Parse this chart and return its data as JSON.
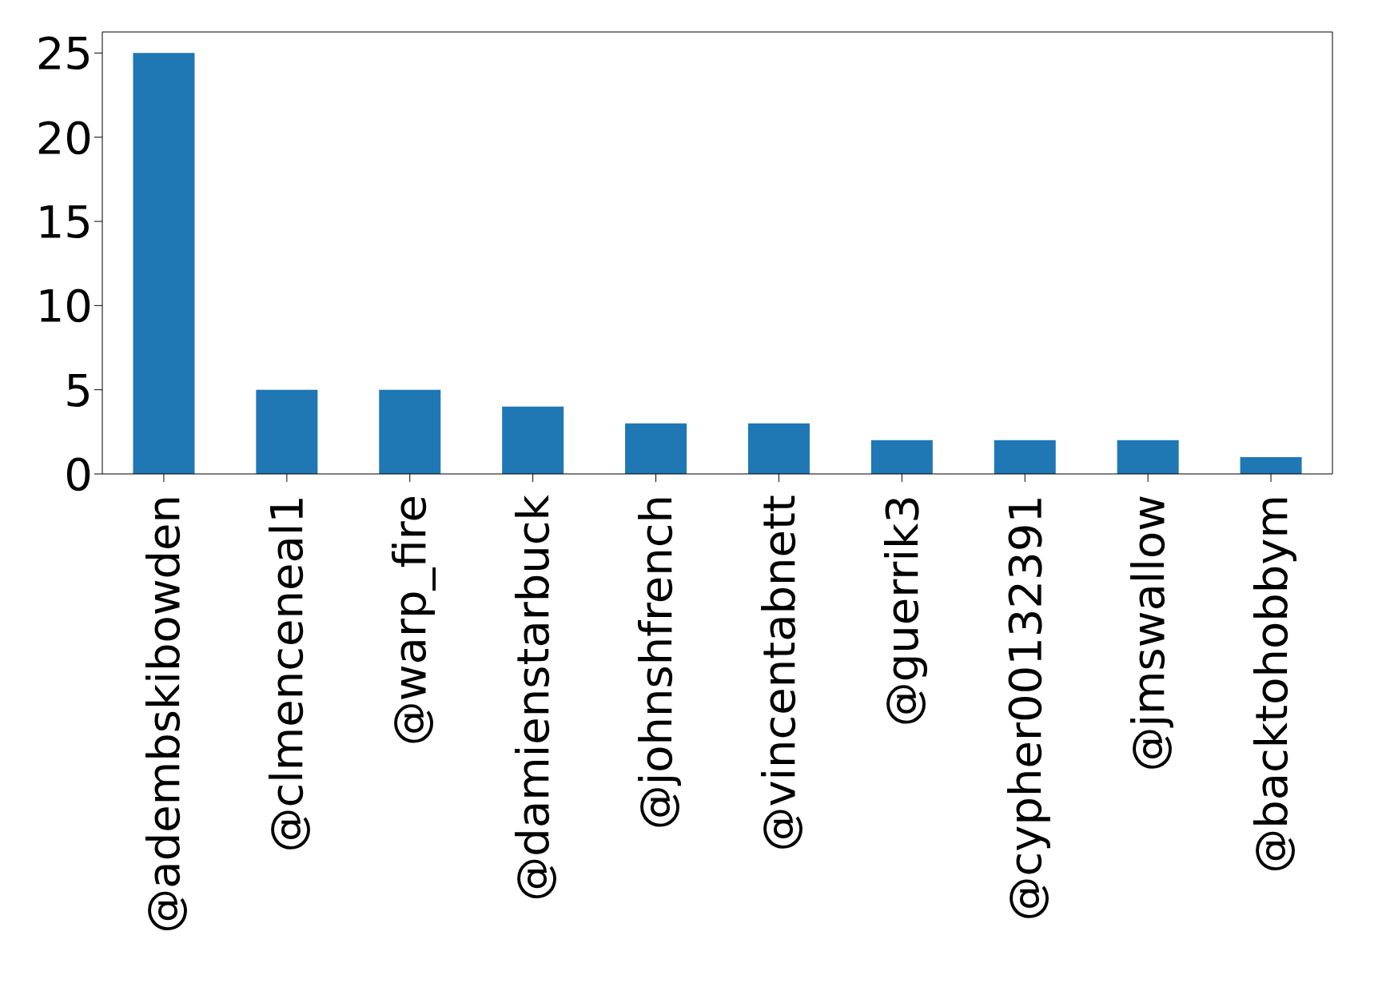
{
  "chart_data": {
    "type": "bar",
    "categories": [
      "@adembskibowden",
      "@clmenceneal1",
      "@warp_fire",
      "@damienstarbuck",
      "@johnshfrench",
      "@vincentabnett",
      "@guerrik3",
      "@cypher00132391",
      "@jmswallow",
      "@backtohobbym"
    ],
    "values": [
      25,
      5,
      5,
      4,
      3,
      3,
      2,
      2,
      2,
      1
    ],
    "color": "#1f77b4",
    "ylim": [
      0,
      26.25
    ],
    "yticks": [
      0,
      5,
      10,
      15,
      20,
      25
    ],
    "grid": false
  }
}
